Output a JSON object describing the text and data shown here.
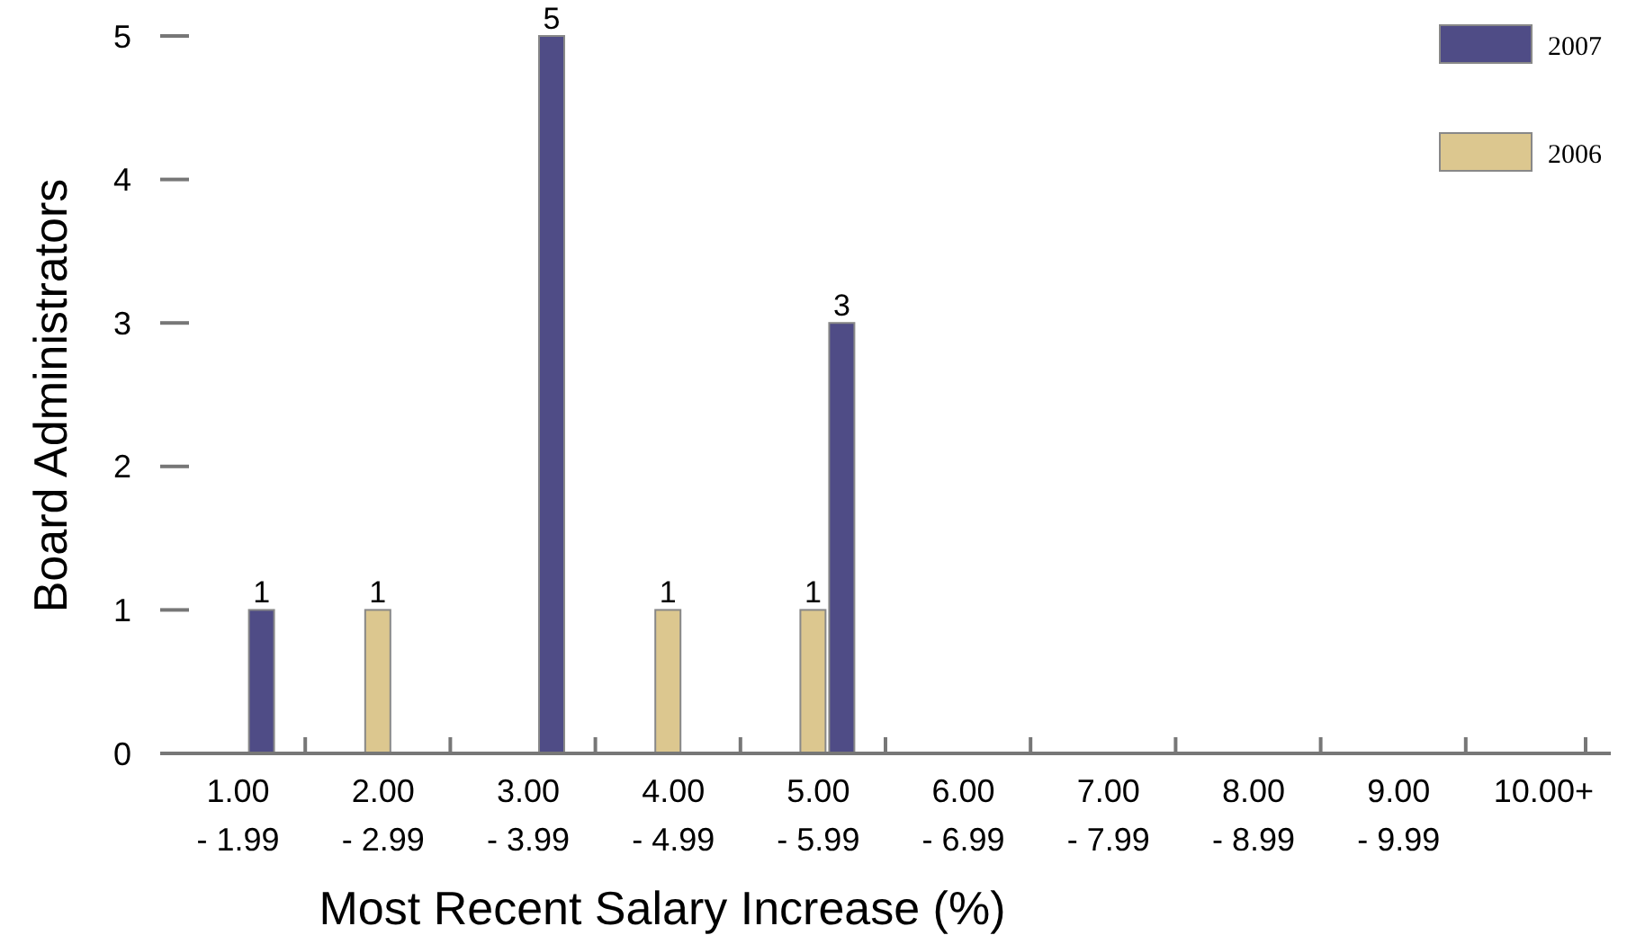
{
  "chart_data": {
    "type": "bar",
    "xlabel": "Most Recent Salary Increase (%)",
    "ylabel": "Board Administrators",
    "categories": [
      "1.00\n- 1.99",
      "2.00\n- 2.99",
      "3.00\n- 3.99",
      "4.00\n- 4.99",
      "5.00\n- 5.99",
      "6.00\n- 6.99",
      "7.00\n- 7.99",
      "8.00\n- 8.99",
      "9.00\n- 9.99",
      "10.00+"
    ],
    "series": [
      {
        "name": "2007",
        "color": "#4f4c86",
        "values": [
          1,
          0,
          5,
          0,
          3,
          0,
          0,
          0,
          0,
          0
        ],
        "value_labels": [
          "1",
          null,
          "5",
          null,
          "3",
          null,
          null,
          null,
          null,
          null
        ]
      },
      {
        "name": "2006",
        "color": "#dcc78f",
        "values": [
          0,
          1,
          0,
          1,
          1,
          0,
          0,
          0,
          0,
          0
        ],
        "value_labels": [
          null,
          "1",
          null,
          "1",
          "1",
          null,
          null,
          null,
          null,
          null
        ]
      }
    ],
    "ylim": [
      0,
      5
    ],
    "yticks": [
      0,
      1,
      2,
      3,
      4,
      5
    ],
    "grid": false,
    "legend": "top right"
  }
}
